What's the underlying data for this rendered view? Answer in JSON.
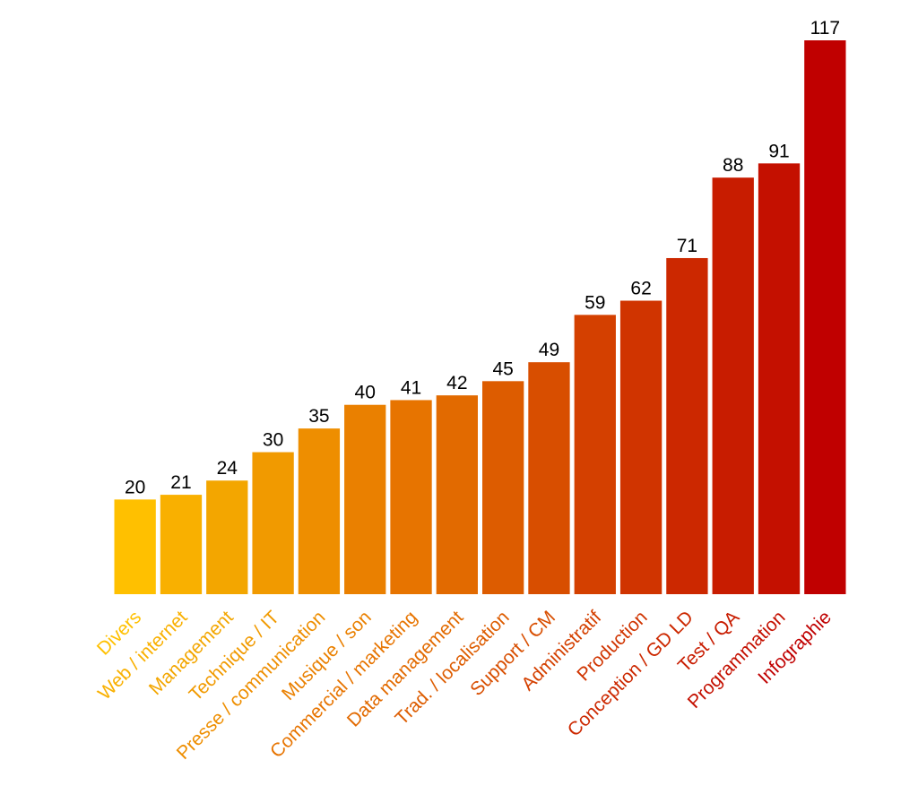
{
  "chart_data": {
    "type": "bar",
    "categories": [
      "Divers",
      "Web / internet",
      "Management",
      "Technique / IT",
      "Presse / communication",
      "Musique / son",
      "Commercial / marketing",
      "Data management",
      "Trad. / localisation",
      "Support / CM",
      "Administratif",
      "Production",
      "Conception / GD LD",
      "Test / QA",
      "Programmation",
      "Infographie"
    ],
    "values": [
      20,
      21,
      24,
      30,
      35,
      40,
      41,
      42,
      45,
      49,
      59,
      62,
      71,
      88,
      91,
      117
    ],
    "colors": [
      "#FFC000",
      "#F9B000",
      "#F3A600",
      "#F19A00",
      "#EE8E00",
      "#EA8000",
      "#E77400",
      "#E26A00",
      "#DD5C00",
      "#D84E00",
      "#D44000",
      "#D03400",
      "#CC2800",
      "#C81C00",
      "#C41000",
      "#C00000"
    ]
  }
}
